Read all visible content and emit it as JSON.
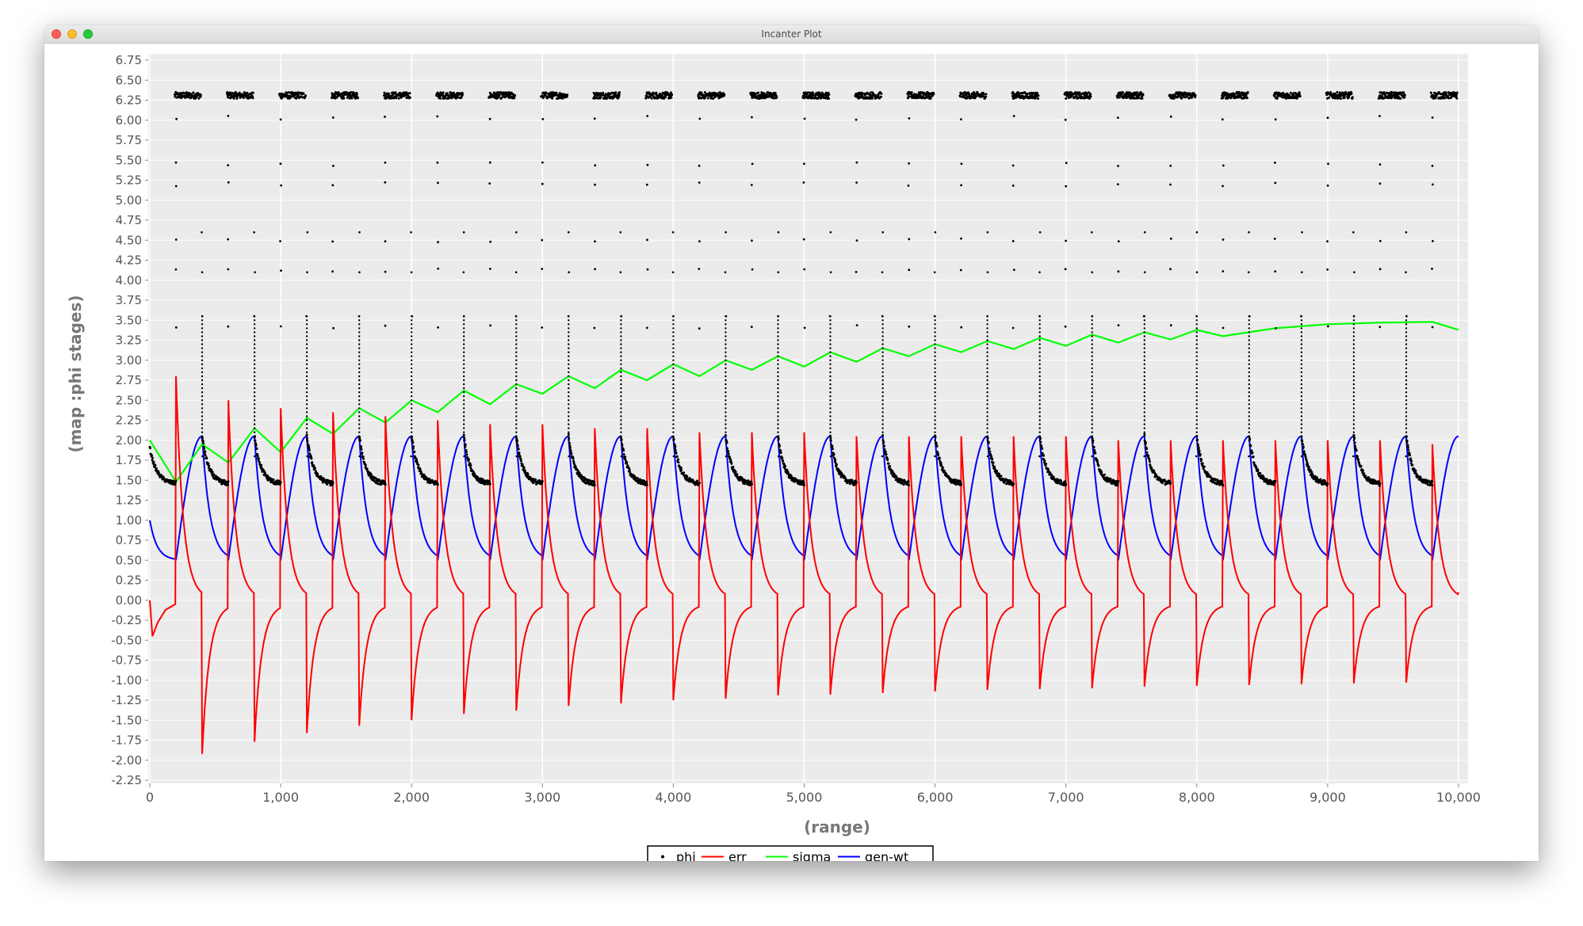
{
  "window": {
    "title": "Incanter Plot"
  },
  "colors": {
    "phi": "#000000",
    "err": "#ff0000",
    "sigma": "#00ff00",
    "gen-wt": "#0000ff",
    "plot_bg": "#ebebeb",
    "grid": "#ffffff"
  },
  "chart_data": {
    "type": "line",
    "xlabel": "(range)",
    "ylabel": "(map :phi stages)",
    "xlim": [
      0,
      10000
    ],
    "ylim": [
      -2.25,
      6.75
    ],
    "x_ticks": [
      "0",
      "1,000",
      "2,000",
      "3,000",
      "4,000",
      "5,000",
      "6,000",
      "7,000",
      "8,000",
      "9,000",
      "10,000"
    ],
    "y_ticks": [
      "-2.25",
      "-2.00",
      "-1.75",
      "-1.50",
      "-1.25",
      "-1.00",
      "-0.75",
      "-0.50",
      "-0.25",
      "0.00",
      "0.25",
      "0.50",
      "0.75",
      "1.00",
      "1.25",
      "1.50",
      "1.75",
      "2.00",
      "2.25",
      "2.50",
      "2.75",
      "3.00",
      "3.25",
      "3.50",
      "3.75",
      "4.00",
      "4.25",
      "4.50",
      "4.75",
      "5.00",
      "5.25",
      "5.50",
      "5.75",
      "6.00",
      "6.25",
      "6.50",
      "6.75"
    ],
    "grid": true,
    "legend": {
      "position": "bottom-center",
      "entries": [
        "phi",
        "err",
        "sigma",
        "gen-wt"
      ]
    },
    "cycle_period": 400,
    "cycle_count": 25,
    "series": [
      {
        "name": "phi",
        "style": "points",
        "description_values": {
          "top_cluster_level": 6.31,
          "decay_start": 1.9,
          "decay_floor": 1.45
        },
        "top_cluster_x": [
          200,
          600,
          1000,
          1400,
          1800,
          2200,
          2600,
          3000,
          3400,
          3800,
          4200,
          4600,
          5000,
          5400,
          5800,
          6200,
          6600,
          7000,
          7400,
          7800,
          8200,
          8600,
          9000,
          9400,
          9800
        ],
        "jump_x": [
          400,
          800,
          1200,
          1600,
          2000,
          2400,
          2800,
          3200,
          3600,
          4000,
          4400,
          4800,
          5200,
          5600,
          6000,
          6400,
          6800,
          7200,
          7600,
          8000,
          8400,
          8800,
          9200,
          9600
        ]
      },
      {
        "name": "err",
        "style": "line",
        "spike_peaks_x": [
          200,
          600,
          1000,
          1400,
          1800,
          2200,
          2600,
          3000,
          3400,
          3800,
          4200,
          4600,
          5000,
          5400,
          5800,
          6200,
          6600,
          7000,
          7400,
          7800,
          8200,
          8600,
          9000,
          9400,
          9800
        ],
        "spike_peaks_y": [
          2.8,
          2.5,
          2.4,
          2.35,
          2.3,
          2.25,
          2.2,
          2.2,
          2.15,
          2.15,
          2.1,
          2.1,
          2.1,
          2.05,
          2.05,
          2.05,
          2.05,
          2.05,
          2.0,
          2.0,
          2.0,
          2.0,
          2.0,
          2.0,
          1.95
        ],
        "dip_x": [
          400,
          800,
          1200,
          1600,
          2000,
          2400,
          2800,
          3200,
          3600,
          4000,
          4400,
          4800,
          5200,
          5600,
          6000,
          6400,
          6800,
          7200,
          7600,
          8000,
          8400,
          8800,
          9200,
          9600
        ],
        "dip_y": [
          -1.92,
          -1.77,
          -1.66,
          -1.57,
          -1.5,
          -1.42,
          -1.38,
          -1.32,
          -1.29,
          -1.25,
          -1.23,
          -1.19,
          -1.18,
          -1.16,
          -1.14,
          -1.12,
          -1.11,
          -1.1,
          -1.08,
          -1.07,
          -1.06,
          -1.05,
          -1.04,
          -1.03
        ],
        "end_value": 0.1
      },
      {
        "name": "sigma",
        "style": "line",
        "x": [
          0,
          200,
          400,
          600,
          800,
          1000,
          1200,
          1400,
          1600,
          1800,
          2000,
          2200,
          2400,
          2600,
          2800,
          3000,
          3200,
          3400,
          3600,
          3800,
          4000,
          4200,
          4400,
          4600,
          4800,
          5000,
          5200,
          5400,
          5600,
          5800,
          6000,
          6200,
          6400,
          6600,
          6800,
          7000,
          7200,
          7400,
          7600,
          7800,
          8000,
          8200,
          8600,
          9000,
          9400,
          9800,
          10000
        ],
        "y": [
          2.0,
          1.48,
          1.95,
          1.72,
          2.15,
          1.85,
          2.28,
          2.08,
          2.4,
          2.22,
          2.5,
          2.35,
          2.62,
          2.45,
          2.7,
          2.58,
          2.8,
          2.65,
          2.88,
          2.75,
          2.95,
          2.8,
          3.0,
          2.88,
          3.05,
          2.92,
          3.1,
          2.98,
          3.15,
          3.05,
          3.2,
          3.1,
          3.24,
          3.14,
          3.28,
          3.18,
          3.32,
          3.22,
          3.35,
          3.26,
          3.38,
          3.3,
          3.4,
          3.45,
          3.47,
          3.48,
          3.38
        ]
      },
      {
        "name": "gen-wt",
        "style": "line",
        "start": 1.0,
        "peak": 2.05,
        "trough": 0.5,
        "end_value": 2.0
      }
    ]
  }
}
